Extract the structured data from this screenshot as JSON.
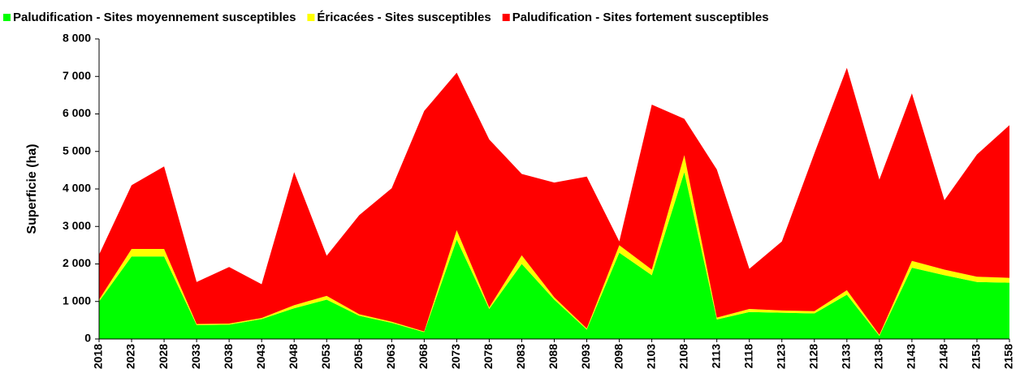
{
  "chart_data": {
    "type": "stacked_area",
    "y_label": "Superficie (ha)",
    "categories": [
      "2018",
      "2023",
      "2028",
      "2033",
      "2038",
      "2043",
      "2048",
      "2053",
      "2058",
      "2063",
      "2068",
      "2073",
      "2078",
      "2083",
      "2088",
      "2093",
      "2098",
      "2103",
      "2108",
      "2113",
      "2118",
      "2123",
      "2128",
      "2133",
      "2138",
      "2143",
      "2148",
      "2153",
      "2158"
    ],
    "series": [
      {
        "name": "Paludification - Sites moyennement susceptibles",
        "color": "#00ff00",
        "values": [
          1000,
          2200,
          2200,
          370,
          380,
          530,
          820,
          1050,
          620,
          430,
          180,
          2650,
          800,
          2000,
          1050,
          250,
          2300,
          1700,
          4450,
          520,
          720,
          700,
          680,
          1180,
          80,
          1900,
          1700,
          1520,
          1500
        ]
      },
      {
        "name": "Éricacées - Sites susceptibles",
        "color": "#ffff00",
        "values": [
          50,
          200,
          200,
          30,
          30,
          30,
          80,
          100,
          40,
          30,
          20,
          250,
          40,
          230,
          60,
          30,
          200,
          150,
          450,
          50,
          80,
          60,
          60,
          120,
          30,
          180,
          150,
          140,
          130
        ]
      },
      {
        "name": "Paludification - Sites fortement susceptibles",
        "color": "#ff0000",
        "values": [
          1200,
          1700,
          2200,
          1120,
          1510,
          900,
          3550,
          1070,
          2640,
          3560,
          5880,
          4200,
          4480,
          2170,
          3060,
          4050,
          100,
          4400,
          970,
          3950,
          1070,
          1840,
          4210,
          5930,
          4140,
          4470,
          1850,
          3260,
          4070
        ]
      }
    ],
    "ylim": [
      0,
      8000
    ],
    "yticks": [
      0,
      {
        "value": 1000,
        "label": "1 000"
      },
      {
        "value": 2000,
        "label": "2 000"
      },
      {
        "value": 3000,
        "label": "3 000"
      },
      {
        "value": 4000,
        "label": "4 000"
      },
      {
        "value": 5000,
        "label": "5 000"
      },
      {
        "value": 6000,
        "label": "6 000"
      },
      {
        "value": 7000,
        "label": "7 000"
      },
      {
        "value": 8000,
        "label": "8 000"
      }
    ],
    "legend": "top"
  }
}
